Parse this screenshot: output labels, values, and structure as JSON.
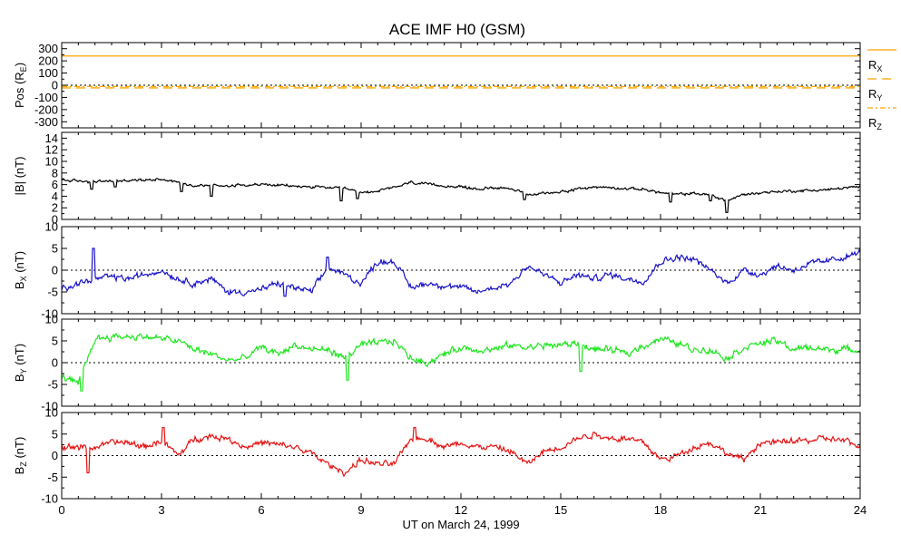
{
  "title": "ACE IMF H0 (GSM)",
  "xlabel": "UT on March 24, 1999",
  "chart_data": [
    {
      "type": "line",
      "panel": "pos",
      "ylabel": "Pos (R",
      "ylabel_sub": "E",
      "ylabel_tail": ")",
      "ylim": [
        -350,
        350
      ],
      "yticks": [
        300,
        200,
        100,
        0,
        -100,
        -200,
        -300
      ],
      "zero_line": true,
      "x": [
        0,
        24
      ],
      "series": [
        {
          "name": "R",
          "sub": "X",
          "color": "#ffa500",
          "dash": "none",
          "values": [
            240,
            240
          ]
        },
        {
          "name": "R",
          "sub": "Y",
          "color": "#ffa500",
          "dash": "10,6",
          "values": [
            -22,
            -22
          ]
        },
        {
          "name": "R",
          "sub": "Z",
          "color": "#ffa500",
          "dash": "6,3,2,3",
          "values": [
            -10,
            -10
          ]
        }
      ]
    },
    {
      "type": "line",
      "panel": "bmag",
      "ylabel": "|B| (nT)",
      "ylim": [
        0,
        15
      ],
      "yticks": [
        14,
        12,
        10,
        8,
        6,
        4,
        2,
        0
      ],
      "zero_line": false,
      "x": [
        0,
        0.5,
        1,
        1.5,
        2,
        2.5,
        3,
        3.5,
        4,
        4.5,
        5,
        5.5,
        6,
        6.5,
        7,
        7.5,
        8,
        8.5,
        9,
        9.5,
        10,
        10.5,
        11,
        11.5,
        12,
        12.5,
        13,
        13.5,
        14,
        14.5,
        15,
        15.5,
        16,
        16.5,
        17,
        17.5,
        18,
        18.5,
        19,
        19.5,
        20,
        20.5,
        21,
        21.5,
        22,
        22.5,
        23,
        23.5,
        24
      ],
      "series": [
        {
          "name": "|B|",
          "color": "#000000",
          "noise": 0.35,
          "spikes": [
            [
              0.9,
              5.2
            ],
            [
              1.6,
              5.6
            ],
            [
              3.6,
              4.8
            ],
            [
              4.5,
              4.0
            ],
            [
              8.4,
              3.2
            ],
            [
              8.9,
              3.6
            ],
            [
              13.9,
              3.4
            ],
            [
              18.3,
              3.0
            ],
            [
              19.5,
              3.2
            ],
            [
              20.0,
              1.2
            ]
          ],
          "values": [
            6.8,
            6.6,
            6.5,
            6.6,
            6.7,
            6.8,
            7.0,
            6.4,
            5.8,
            5.9,
            5.8,
            6.0,
            6.0,
            5.9,
            5.7,
            5.6,
            5.5,
            5.3,
            4.6,
            4.9,
            5.5,
            6.4,
            6.0,
            5.8,
            5.6,
            5.2,
            5.5,
            5.4,
            4.2,
            4.5,
            4.8,
            5.2,
            5.6,
            5.5,
            5.3,
            5.2,
            4.6,
            4.3,
            4.5,
            4.2,
            3.2,
            4.3,
            4.6,
            4.8,
            4.9,
            5.0,
            5.1,
            5.4,
            5.6
          ]
        }
      ]
    },
    {
      "type": "line",
      "panel": "bx",
      "ylabel": "B",
      "ylabel_sub": "X",
      "ylabel_tail": " (nT)",
      "ylim": [
        -10,
        10
      ],
      "yticks": [
        10,
        5,
        0,
        -5,
        -10
      ],
      "zero_line": true,
      "x": [
        0,
        0.5,
        1,
        1.5,
        2,
        2.5,
        3,
        3.5,
        4,
        4.5,
        5,
        5.5,
        6,
        6.5,
        7,
        7.5,
        8,
        8.5,
        9,
        9.5,
        10,
        10.5,
        11,
        11.5,
        12,
        12.5,
        13,
        13.5,
        14,
        14.5,
        15,
        15.5,
        16,
        16.5,
        17,
        17.5,
        18,
        18.5,
        19,
        19.5,
        20,
        20.5,
        21,
        21.5,
        22,
        22.5,
        23,
        23.5,
        24
      ],
      "series": [
        {
          "name": "BX",
          "color": "#1a14c8",
          "noise": 1.1,
          "spikes": [
            [
              0.95,
              5.0
            ],
            [
              6.7,
              -6.0
            ],
            [
              8.0,
              3.0
            ]
          ],
          "values": [
            -4,
            -3,
            -2,
            -1.5,
            -2,
            -1,
            0,
            -2,
            -3,
            -2,
            -5,
            -5,
            -4.5,
            -3,
            -4,
            -5,
            0.5,
            -1,
            -3,
            2,
            2,
            -4,
            -3,
            -3.5,
            -4,
            -5,
            -4,
            -3,
            1,
            -1,
            -3,
            -1,
            -2,
            -1,
            -2,
            -2.5,
            2,
            3,
            2.5,
            0,
            -3,
            0,
            -1,
            1,
            0,
            1.5,
            2,
            3,
            4
          ]
        }
      ]
    },
    {
      "type": "line",
      "panel": "by",
      "ylabel": "B",
      "ylabel_sub": "Y",
      "ylabel_tail": " (nT)",
      "ylim": [
        -10,
        10
      ],
      "yticks": [
        10,
        5,
        0,
        -5,
        -10
      ],
      "zero_line": true,
      "x": [
        0,
        0.5,
        1,
        1.5,
        2,
        2.5,
        3,
        3.5,
        4,
        4.5,
        5,
        5.5,
        6,
        6.5,
        7,
        7.5,
        8,
        8.5,
        9,
        9.5,
        10,
        10.5,
        11,
        11.5,
        12,
        12.5,
        13,
        13.5,
        14,
        14.5,
        15,
        15.5,
        16,
        16.5,
        17,
        17.5,
        18,
        18.5,
        19,
        19.5,
        20,
        20.5,
        21,
        21.5,
        22,
        22.5,
        23,
        23.5,
        24
      ],
      "series": [
        {
          "name": "BY",
          "color": "#1ee61e",
          "noise": 1.2,
          "spikes": [
            [
              0.6,
              -6.5
            ],
            [
              8.6,
              -4.0
            ],
            [
              15.6,
              -2.0
            ]
          ],
          "values": [
            -3,
            -5,
            5.5,
            6,
            6,
            6,
            5.5,
            5,
            3,
            2,
            0.5,
            1,
            3.5,
            2,
            4,
            3,
            3,
            1,
            4,
            4.5,
            5,
            1,
            0,
            2,
            3.5,
            3,
            3,
            4,
            3.5,
            4,
            4,
            4.5,
            3,
            3,
            2,
            4,
            5.5,
            4.5,
            3,
            3,
            1,
            3.5,
            4.5,
            5,
            3,
            3.5,
            3,
            3,
            3
          ]
        }
      ]
    },
    {
      "type": "line",
      "panel": "bz",
      "ylabel": "B",
      "ylabel_sub": "Z",
      "ylabel_tail": " (nT)",
      "ylim": [
        -10,
        10
      ],
      "yticks": [
        10,
        5,
        0,
        -5,
        -10
      ],
      "zero_line": true,
      "x": [
        0,
        0.5,
        1,
        1.5,
        2,
        2.5,
        3,
        3.5,
        4,
        4.5,
        5,
        5.5,
        6,
        6.5,
        7,
        7.5,
        8,
        8.5,
        9,
        9.5,
        10,
        10.5,
        11,
        11.5,
        12,
        12.5,
        13,
        13.5,
        14,
        14.5,
        15,
        15.5,
        16,
        16.5,
        17,
        17.5,
        18,
        18.5,
        19,
        19.5,
        20,
        20.5,
        21,
        21.5,
        22,
        22.5,
        23,
        23.5,
        24
      ],
      "series": [
        {
          "name": "BZ",
          "color": "#e61414",
          "noise": 1.1,
          "spikes": [
            [
              3.05,
              6.5
            ],
            [
              0.8,
              -4.0
            ],
            [
              10.6,
              6.5
            ]
          ],
          "values": [
            2,
            2,
            2,
            3,
            3,
            2,
            3.5,
            0,
            4,
            4.5,
            4,
            2,
            3,
            2.5,
            2,
            0.5,
            -2,
            -4,
            -1,
            -2,
            -2,
            4,
            4,
            2,
            3,
            2,
            2,
            1,
            -2,
            1,
            2,
            4,
            5,
            4,
            4,
            3,
            -1,
            0,
            2,
            3,
            0.5,
            -1,
            3,
            3,
            3.5,
            3.5,
            4,
            3.5,
            2
          ]
        }
      ]
    }
  ],
  "x_axis": {
    "xlim": [
      0,
      24
    ],
    "ticks": [
      0,
      3,
      6,
      9,
      12,
      15,
      18,
      21,
      24
    ],
    "tick_labels": [
      "0",
      "3",
      "6",
      "9",
      "12",
      "15",
      "18",
      "21",
      "24"
    ]
  },
  "pos_legend": [
    {
      "label": "R",
      "sub": "X"
    },
    {
      "label": "R",
      "sub": "Y"
    },
    {
      "label": "R",
      "sub": "Z"
    }
  ]
}
